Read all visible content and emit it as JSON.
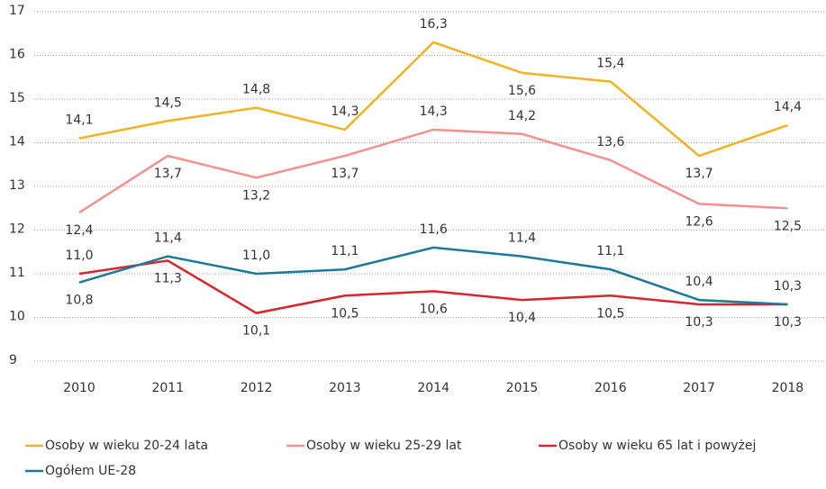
{
  "chart_data": {
    "type": "line",
    "categories": [
      "2010",
      "2011",
      "2012",
      "2013",
      "2014",
      "2015",
      "2016",
      "2017",
      "2018"
    ],
    "ylim": [
      9,
      17
    ],
    "yticks": [
      9,
      10,
      11,
      12,
      13,
      14,
      15,
      16,
      17
    ],
    "grid": true,
    "series": [
      {
        "name": "Osoby w wieku 20-24 lata",
        "color": "#f0b323",
        "values": [
          14.1,
          14.5,
          14.8,
          14.3,
          16.3,
          15.6,
          15.4,
          13.7,
          14.4
        ],
        "value_labels": [
          "14,1",
          "14,5",
          "14,8",
          "14,3",
          "16,3",
          "15,6",
          "15,4",
          "13,7",
          "14,4"
        ]
      },
      {
        "name": "Osoby w wieku 25-29 lat",
        "color": "#f4908e",
        "values": [
          12.4,
          13.7,
          13.2,
          13.7,
          14.3,
          14.2,
          13.6,
          12.6,
          12.5
        ],
        "value_labels": [
          "12,4",
          "13,7",
          "13,2",
          "13,7",
          "14,3",
          "14,2",
          "13,6",
          "12,6",
          "12,5"
        ]
      },
      {
        "name": "Osoby w wieku 65 lat i powyżej",
        "color": "#d7262e",
        "values": [
          11.0,
          11.3,
          10.1,
          10.5,
          10.6,
          10.4,
          10.5,
          10.3,
          10.3
        ],
        "value_labels": [
          "11,0",
          "11,3",
          "10,1",
          "10,5",
          "10,6",
          "10,4",
          "10,5",
          "10,3",
          "10,3"
        ]
      },
      {
        "name": "Ogółem UE-28",
        "color": "#1b7a99",
        "values": [
          10.8,
          11.4,
          11.0,
          11.1,
          11.6,
          11.4,
          11.1,
          10.4,
          10.3
        ],
        "value_labels": [
          "10,8",
          "11,4",
          "11,0",
          "11,1",
          "11,6",
          "11,4",
          "11,1",
          "10,4",
          "10,3"
        ]
      }
    ]
  }
}
